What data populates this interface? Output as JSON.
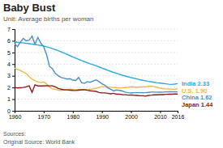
{
  "chart_data": {
    "type": "line",
    "title": "Baby Bust",
    "subtitle": "Unit: Average births per woman",
    "annotations": [
      "Sources:",
      "Original Source: World Bank"
    ],
    "xlim": [
      1960,
      2016
    ],
    "xticks": [
      1960,
      1970,
      1980,
      1990,
      2000,
      2010,
      2016
    ],
    "ylim": [
      0,
      7
    ],
    "yticks": [
      0,
      1,
      2,
      3,
      4,
      5,
      6,
      7
    ],
    "grid": true,
    "x": [
      1960,
      1961,
      1962,
      1963,
      1964,
      1965,
      1966,
      1967,
      1968,
      1969,
      1970,
      1971,
      1972,
      1973,
      1974,
      1975,
      1976,
      1977,
      1978,
      1979,
      1980,
      1981,
      1982,
      1983,
      1984,
      1985,
      1986,
      1987,
      1988,
      1989,
      1990,
      1991,
      1992,
      1993,
      1994,
      1995,
      1996,
      1997,
      1998,
      1999,
      2000,
      2001,
      2002,
      2003,
      2004,
      2005,
      2006,
      2007,
      2008,
      2009,
      2010,
      2011,
      2012,
      2013,
      2014,
      2015,
      2016
    ],
    "series": [
      {
        "name": "India 2.33",
        "color": "#29ABE2",
        "values": [
          5.91,
          5.87,
          5.84,
          5.81,
          5.78,
          5.75,
          5.72,
          5.68,
          5.64,
          5.6,
          5.55,
          5.48,
          5.41,
          5.33,
          5.24,
          5.15,
          5.05,
          4.95,
          4.84,
          4.73,
          4.62,
          4.51,
          4.41,
          4.31,
          4.21,
          4.12,
          4.03,
          3.94,
          3.85,
          3.76,
          3.67,
          3.57,
          3.47,
          3.38,
          3.29,
          3.21,
          3.13,
          3.05,
          2.98,
          2.91,
          2.85,
          2.79,
          2.73,
          2.67,
          2.62,
          2.57,
          2.52,
          2.48,
          2.44,
          2.4,
          2.37,
          2.34,
          2.31,
          2.28,
          2.26,
          2.29,
          2.33
        ]
      },
      {
        "name": "U.S. 1.90",
        "color": "#E8B84B",
        "values": [
          3.65,
          3.55,
          3.45,
          3.32,
          3.18,
          2.93,
          2.73,
          2.57,
          2.47,
          2.42,
          2.48,
          2.3,
          2.03,
          1.88,
          1.84,
          1.77,
          1.75,
          1.8,
          1.83,
          1.85,
          1.84,
          1.81,
          1.82,
          1.8,
          1.81,
          1.84,
          1.84,
          1.87,
          1.93,
          2.0,
          2.07,
          2.07,
          2.05,
          2.02,
          2.0,
          1.98,
          1.97,
          1.97,
          1.99,
          2.0,
          2.06,
          2.04,
          2.01,
          2.04,
          2.05,
          2.05,
          2.1,
          2.12,
          2.07,
          2.01,
          1.93,
          1.89,
          1.88,
          1.86,
          1.86,
          1.84,
          1.9
        ]
      },
      {
        "name": "China 1.62",
        "color": "#4A90C4",
        "values": [
          5.75,
          5.5,
          5.9,
          6.2,
          6.0,
          6.05,
          6.4,
          5.7,
          6.3,
          5.8,
          5.5,
          4.8,
          3.8,
          3.6,
          3.2,
          3.0,
          2.85,
          2.8,
          2.72,
          2.75,
          2.63,
          2.6,
          2.86,
          2.42,
          2.35,
          2.5,
          2.45,
          2.55,
          2.65,
          2.5,
          2.31,
          2.2,
          1.96,
          1.85,
          1.7,
          1.78,
          1.75,
          1.7,
          1.6,
          1.55,
          1.52,
          1.55,
          1.55,
          1.55,
          1.55,
          1.55,
          1.58,
          1.6,
          1.6,
          1.6,
          1.59,
          1.6,
          1.62,
          1.63,
          1.63,
          1.63,
          1.62
        ]
      },
      {
        "name": "Japan 1.44",
        "color": "#8B1A1A",
        "values": [
          2.0,
          1.96,
          1.98,
          2.0,
          2.05,
          2.14,
          1.58,
          2.23,
          2.13,
          2.13,
          2.13,
          2.16,
          2.14,
          2.14,
          2.05,
          1.91,
          1.85,
          1.8,
          1.79,
          1.77,
          1.75,
          1.74,
          1.77,
          1.8,
          1.81,
          1.76,
          1.72,
          1.69,
          1.66,
          1.57,
          1.54,
          1.53,
          1.5,
          1.46,
          1.5,
          1.42,
          1.43,
          1.39,
          1.38,
          1.34,
          1.36,
          1.33,
          1.32,
          1.29,
          1.29,
          1.26,
          1.32,
          1.34,
          1.37,
          1.37,
          1.39,
          1.39,
          1.41,
          1.43,
          1.42,
          1.45,
          1.44
        ]
      }
    ]
  }
}
